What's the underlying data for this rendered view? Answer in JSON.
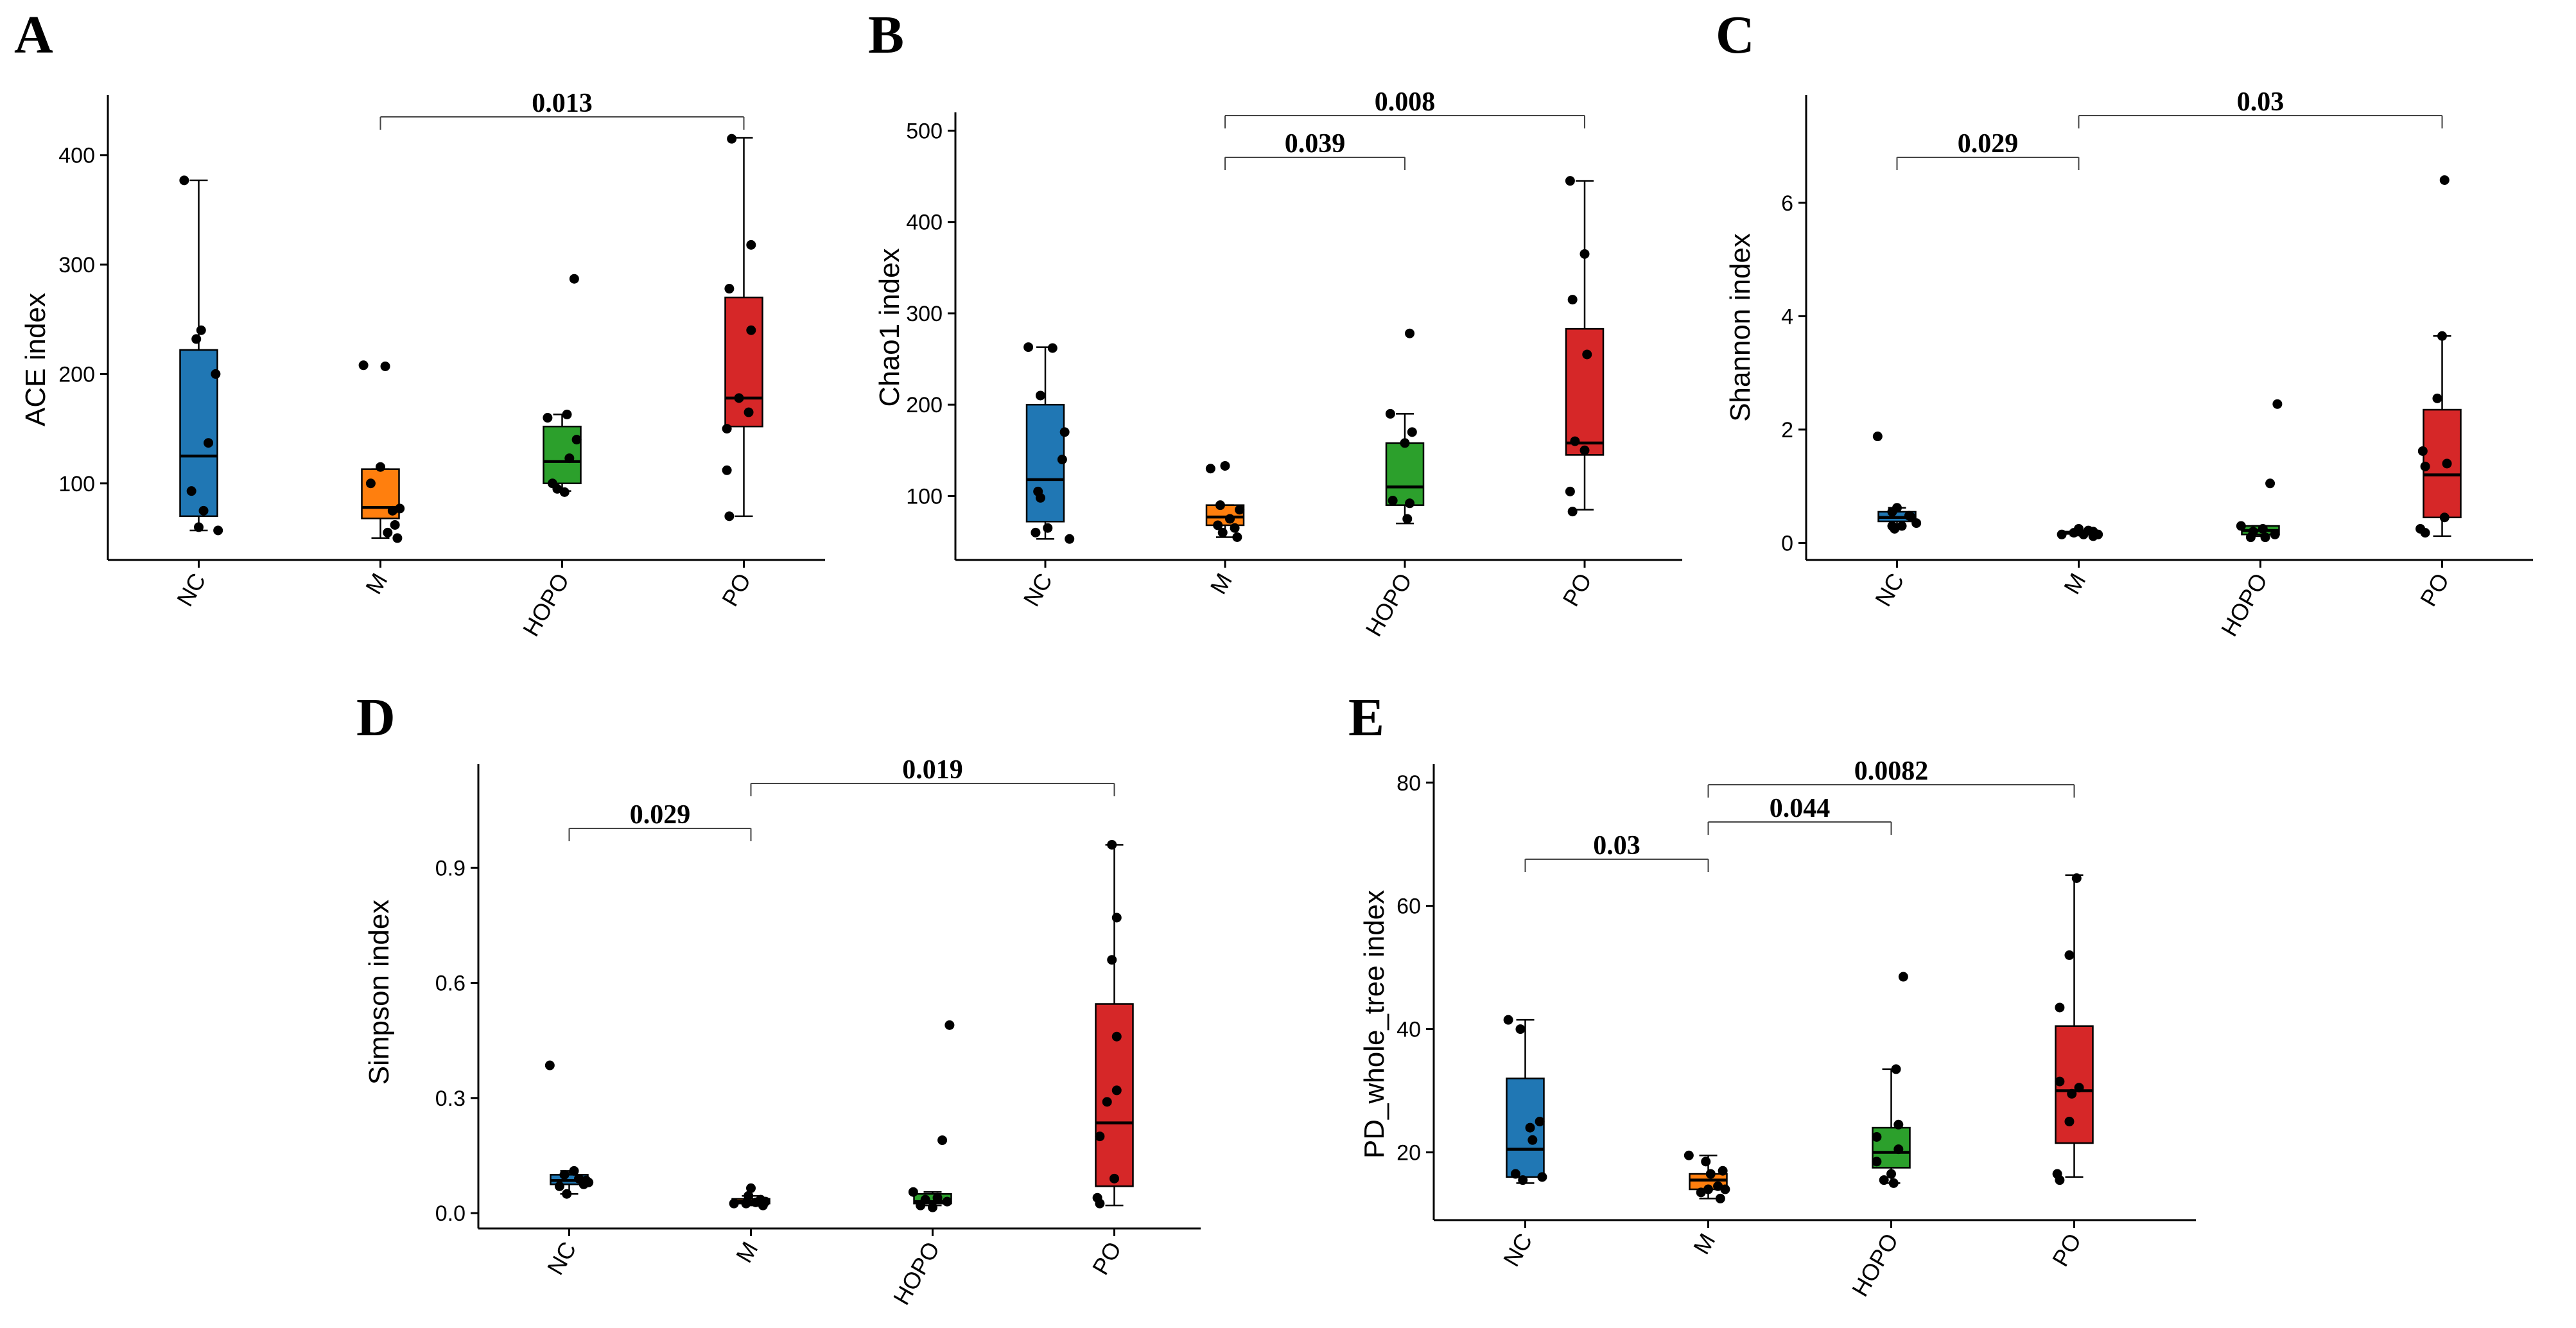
{
  "chart_data": [
    {
      "type": "box",
      "panel": "A",
      "ylabel": "ACE index",
      "categories": [
        "NC",
        "M",
        "HOPO",
        "PO"
      ],
      "colors": [
        "#2077b4",
        "#ff7f0e",
        "#2ca02c",
        "#d62728"
      ],
      "yticks": [
        100,
        200,
        300,
        400
      ],
      "ylim": [
        30,
        455
      ],
      "boxes": [
        {
          "whisker_low": 57,
          "q1": 70,
          "median": 125,
          "q3": 222,
          "whisker_high": 377
        },
        {
          "whisker_low": 50,
          "q1": 68,
          "median": 78,
          "q3": 113,
          "whisker_high": 113
        },
        {
          "whisker_low": 93,
          "q1": 100,
          "median": 120,
          "q3": 152,
          "whisker_high": 163
        },
        {
          "whisker_low": 70,
          "q1": 152,
          "median": 178,
          "q3": 270,
          "whisker_high": 416
        }
      ],
      "points": [
        [
          [
            -0.3,
            377
          ],
          [
            0.05,
            240
          ],
          [
            -0.05,
            232
          ],
          [
            0.35,
            200
          ],
          [
            0.2,
            137
          ],
          [
            -0.15,
            93
          ],
          [
            0.1,
            75
          ],
          [
            0.0,
            60
          ],
          [
            0.4,
            57
          ]
        ],
        [
          [
            -0.35,
            208
          ],
          [
            0.1,
            207
          ],
          [
            0.0,
            115
          ],
          [
            -0.2,
            100
          ],
          [
            0.4,
            77
          ],
          [
            0.25,
            75
          ],
          [
            0.3,
            62
          ],
          [
            0.15,
            55
          ],
          [
            0.35,
            50
          ]
        ],
        [
          [
            -0.3,
            160
          ],
          [
            0.1,
            163
          ],
          [
            0.25,
            287
          ],
          [
            0.3,
            140
          ],
          [
            0.15,
            123
          ],
          [
            -0.2,
            100
          ],
          [
            -0.1,
            95
          ],
          [
            0.05,
            92
          ]
        ],
        [
          [
            -0.25,
            415
          ],
          [
            0.15,
            318
          ],
          [
            -0.3,
            278
          ],
          [
            0.15,
            240
          ],
          [
            -0.35,
            150
          ],
          [
            -0.1,
            178
          ],
          [
            0.1,
            165
          ],
          [
            -0.35,
            112
          ],
          [
            -0.3,
            70
          ]
        ]
      ],
      "comparisons": [
        {
          "from": "M",
          "to": "PO",
          "level": 1,
          "label": "0.013"
        }
      ]
    },
    {
      "type": "box",
      "panel": "B",
      "ylabel": "Chao1 index",
      "categories": [
        "NC",
        "M",
        "HOPO",
        "PO"
      ],
      "colors": [
        "#2077b4",
        "#ff7f0e",
        "#2ca02c",
        "#d62728"
      ],
      "yticks": [
        100,
        200,
        300,
        400,
        500
      ],
      "ylim": [
        30,
        520
      ],
      "boxes": [
        {
          "whisker_low": 53,
          "q1": 72,
          "median": 118,
          "q3": 200,
          "whisker_high": 263
        },
        {
          "whisker_low": 55,
          "q1": 68,
          "median": 77,
          "q3": 90,
          "whisker_high": 90
        },
        {
          "whisker_low": 70,
          "q1": 90,
          "median": 110,
          "q3": 158,
          "whisker_high": 190
        },
        {
          "whisker_low": 85,
          "q1": 145,
          "median": 158,
          "q3": 283,
          "whisker_high": 445
        }
      ],
      "points": [
        [
          [
            -0.35,
            263
          ],
          [
            0.15,
            262
          ],
          [
            -0.1,
            210
          ],
          [
            0.4,
            170
          ],
          [
            0.35,
            140
          ],
          [
            -0.15,
            105
          ],
          [
            -0.1,
            98
          ],
          [
            0.05,
            65
          ],
          [
            -0.2,
            60
          ],
          [
            0.5,
            53
          ]
        ],
        [
          [
            -0.3,
            130
          ],
          [
            0.0,
            133
          ],
          [
            -0.1,
            90
          ],
          [
            0.3,
            85
          ],
          [
            0.1,
            75
          ],
          [
            -0.15,
            68
          ],
          [
            0.2,
            65
          ],
          [
            -0.05,
            60
          ],
          [
            0.25,
            55
          ]
        ],
        [
          [
            0.1,
            278
          ],
          [
            -0.3,
            190
          ],
          [
            0.15,
            170
          ],
          [
            0.0,
            158
          ],
          [
            -0.25,
            95
          ],
          [
            0.1,
            92
          ],
          [
            0.05,
            75
          ]
        ],
        [
          [
            -0.3,
            445
          ],
          [
            0.0,
            365
          ],
          [
            -0.25,
            315
          ],
          [
            0.05,
            255
          ],
          [
            -0.2,
            160
          ],
          [
            0.0,
            150
          ],
          [
            -0.3,
            105
          ],
          [
            -0.25,
            83
          ]
        ]
      ],
      "comparisons": [
        {
          "from": "M",
          "to": "HOPO",
          "level": 1,
          "label": "0.039"
        },
        {
          "from": "M",
          "to": "PO",
          "level": 2,
          "label": "0.008"
        }
      ]
    },
    {
      "type": "box",
      "panel": "C",
      "ylabel": "Shannon index",
      "categories": [
        "NC",
        "M",
        "HOPO",
        "PO"
      ],
      "colors": [
        "#2077b4",
        "#ff7f0e",
        "#2ca02c",
        "#d62728"
      ],
      "yticks": [
        0,
        2,
        4,
        6
      ],
      "ylim": [
        -0.3,
        7.9
      ],
      "boxes": [
        {
          "whisker_low": 0.33,
          "q1": 0.38,
          "median": 0.45,
          "q3": 0.55,
          "whisker_high": 0.62
        },
        {
          "whisker_low": 0.13,
          "q1": 0.16,
          "median": 0.18,
          "q3": 0.2,
          "whisker_high": 0.22
        },
        {
          "whisker_low": 0.12,
          "q1": 0.15,
          "median": 0.22,
          "q3": 0.3,
          "whisker_high": 0.3
        },
        {
          "whisker_low": 0.12,
          "q1": 0.45,
          "median": 1.2,
          "q3": 2.35,
          "whisker_high": 3.65
        }
      ],
      "points": [
        [
          [
            -0.4,
            1.88
          ],
          [
            0.0,
            0.62
          ],
          [
            -0.1,
            0.55
          ],
          [
            0.25,
            0.48
          ],
          [
            0.3,
            0.45
          ],
          [
            0.4,
            0.35
          ],
          [
            -0.1,
            0.3
          ],
          [
            0.1,
            0.3
          ],
          [
            -0.05,
            0.25
          ]
        ],
        [
          [
            -0.35,
            0.15
          ],
          [
            0.0,
            0.25
          ],
          [
            0.2,
            0.22
          ],
          [
            0.3,
            0.2
          ],
          [
            -0.1,
            0.18
          ],
          [
            0.1,
            0.15
          ],
          [
            0.4,
            0.15
          ],
          [
            0.3,
            0.12
          ]
        ],
        [
          [
            0.35,
            2.45
          ],
          [
            0.2,
            1.05
          ],
          [
            -0.4,
            0.3
          ],
          [
            0.05,
            0.25
          ],
          [
            -0.15,
            0.2
          ],
          [
            0.3,
            0.15
          ],
          [
            -0.2,
            0.1
          ],
          [
            0.1,
            0.1
          ]
        ],
        [
          [
            0.05,
            6.4
          ],
          [
            0.0,
            3.65
          ],
          [
            -0.1,
            2.55
          ],
          [
            -0.4,
            1.62
          ],
          [
            -0.35,
            1.35
          ],
          [
            0.1,
            1.4
          ],
          [
            -0.45,
            0.25
          ],
          [
            -0.35,
            0.18
          ],
          [
            0.05,
            0.45
          ]
        ]
      ],
      "comparisons": [
        {
          "from": "NC",
          "to": "M",
          "level": 1,
          "label": "0.029"
        },
        {
          "from": "M",
          "to": "PO",
          "level": 2,
          "label": "0.03"
        }
      ]
    },
    {
      "type": "box",
      "panel": "D",
      "ylabel": "Simpson index",
      "categories": [
        "NC",
        "M",
        "HOPO",
        "PO"
      ],
      "colors": [
        "#2077b4",
        "#ff7f0e",
        "#2ca02c",
        "#d62728"
      ],
      "yticks": [
        "0.0",
        "0.3",
        "0.6",
        "0.9"
      ],
      "ytick_values": [
        0,
        0.3,
        0.6,
        0.9
      ],
      "ylim": [
        -0.04,
        1.17
      ],
      "boxes": [
        {
          "whisker_low": 0.05,
          "q1": 0.075,
          "median": 0.085,
          "q3": 0.1,
          "whisker_high": 0.11
        },
        {
          "whisker_low": 0.02,
          "q1": 0.025,
          "median": 0.03,
          "q3": 0.037,
          "whisker_high": 0.045
        },
        {
          "whisker_low": 0.02,
          "q1": 0.025,
          "median": 0.03,
          "q3": 0.05,
          "whisker_high": 0.055
        },
        {
          "whisker_low": 0.02,
          "q1": 0.07,
          "median": 0.235,
          "q3": 0.545,
          "whisker_high": 0.96
        }
      ],
      "points": [
        [
          [
            -0.4,
            0.385
          ],
          [
            -0.1,
            0.1
          ],
          [
            0.1,
            0.11
          ],
          [
            0.2,
            0.09
          ],
          [
            0.35,
            0.085
          ],
          [
            0.4,
            0.08
          ],
          [
            -0.2,
            0.07
          ],
          [
            -0.05,
            0.05
          ],
          [
            0.3,
            0.075
          ]
        ],
        [
          [
            -0.35,
            0.025
          ],
          [
            0.0,
            0.065
          ],
          [
            -0.05,
            0.045
          ],
          [
            0.2,
            0.035
          ],
          [
            0.3,
            0.03
          ],
          [
            0.1,
            0.028
          ],
          [
            -0.1,
            0.025
          ],
          [
            0.25,
            0.02
          ]
        ],
        [
          [
            0.35,
            0.49
          ],
          [
            0.2,
            0.19
          ],
          [
            -0.4,
            0.055
          ],
          [
            0.1,
            0.04
          ],
          [
            -0.15,
            0.035
          ],
          [
            0.3,
            0.03
          ],
          [
            -0.25,
            0.02
          ],
          [
            0.0,
            0.015
          ]
        ],
        [
          [
            -0.05,
            0.96
          ],
          [
            0.05,
            0.77
          ],
          [
            -0.05,
            0.66
          ],
          [
            0.05,
            0.46
          ],
          [
            0.05,
            0.32
          ],
          [
            -0.15,
            0.29
          ],
          [
            -0.3,
            0.2
          ],
          [
            0.0,
            0.09
          ],
          [
            -0.35,
            0.04
          ],
          [
            -0.3,
            0.025
          ]
        ]
      ],
      "comparisons": [
        {
          "from": "NC",
          "to": "M",
          "level": 1,
          "label": "0.029"
        },
        {
          "from": "M",
          "to": "PO",
          "level": 2,
          "label": "0.019"
        }
      ]
    },
    {
      "type": "box",
      "panel": "E",
      "ylabel": "PD_whole_tree index",
      "categories": [
        "NC",
        "M",
        "HOPO",
        "PO"
      ],
      "colors": [
        "#2077b4",
        "#ff7f0e",
        "#2ca02c",
        "#d62728"
      ],
      "yticks": [
        20,
        40,
        60,
        80
      ],
      "ylim": [
        9,
        83
      ],
      "boxes": [
        {
          "whisker_low": 15,
          "q1": 16,
          "median": 20.5,
          "q3": 32,
          "whisker_high": 41.5
        },
        {
          "whisker_low": 12.5,
          "q1": 14,
          "median": 15.5,
          "q3": 16.5,
          "whisker_high": 19.5
        },
        {
          "whisker_low": 15,
          "q1": 17.5,
          "median": 20,
          "q3": 24,
          "whisker_high": 33.5
        },
        {
          "whisker_low": 16,
          "q1": 21.5,
          "median": 30,
          "q3": 40.5,
          "whisker_high": 65
        }
      ],
      "points": [
        [
          [
            -0.35,
            41.5
          ],
          [
            -0.1,
            40
          ],
          [
            0.1,
            24
          ],
          [
            0.3,
            25
          ],
          [
            0.15,
            22
          ],
          [
            -0.2,
            16.5
          ],
          [
            -0.05,
            15.5
          ],
          [
            0.35,
            16
          ]
        ],
        [
          [
            -0.4,
            19.5
          ],
          [
            -0.05,
            18.5
          ],
          [
            0.05,
            16.5
          ],
          [
            0.3,
            17
          ],
          [
            0.2,
            14.5
          ],
          [
            0.0,
            14
          ],
          [
            -0.15,
            13.5
          ],
          [
            0.35,
            14
          ],
          [
            0.25,
            12.5
          ]
        ],
        [
          [
            0.25,
            48.5
          ],
          [
            0.1,
            33.5
          ],
          [
            0.15,
            24.5
          ],
          [
            -0.3,
            22.5
          ],
          [
            0.15,
            20.5
          ],
          [
            -0.3,
            18.5
          ],
          [
            0.0,
            16.5
          ],
          [
            -0.15,
            15.5
          ],
          [
            0.05,
            15
          ]
        ],
        [
          [
            0.05,
            64.5
          ],
          [
            -0.1,
            52
          ],
          [
            -0.3,
            43.5
          ],
          [
            0.1,
            30.5
          ],
          [
            -0.3,
            31.5
          ],
          [
            -0.05,
            29.5
          ],
          [
            -0.1,
            25
          ],
          [
            -0.35,
            16.5
          ],
          [
            -0.3,
            15.5
          ]
        ]
      ],
      "comparisons": [
        {
          "from": "NC",
          "to": "M",
          "level": 1,
          "label": "0.03"
        },
        {
          "from": "M",
          "to": "HOPO",
          "level": 2,
          "label": "0.044"
        },
        {
          "from": "M",
          "to": "PO",
          "level": 3,
          "label": "0.0082"
        }
      ]
    }
  ]
}
